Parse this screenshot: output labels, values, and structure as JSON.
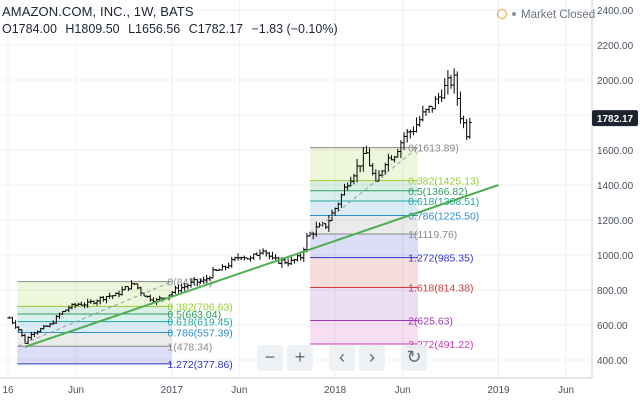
{
  "header": {
    "symbol": "AMAZON.COM, INC., 1W, BATS",
    "market_status": "Market Closed",
    "ohlc": {
      "open": "O1784.00",
      "high": "H1809.50",
      "low": "L1656.56",
      "close": "C1782.17",
      "change": "−1.83 (−0.10%)"
    }
  },
  "icons": {
    "clock": "clock-icon",
    "status_dot": "dot-icon"
  },
  "controls": {
    "zoom_out": "−",
    "zoom_in": "+",
    "scroll_left": "‹",
    "scroll_right": "›",
    "reset": "↻"
  },
  "colors": {
    "accent_line": "#4caf50",
    "price_label_bg": "#1c2430",
    "bars": "#000000"
  },
  "chart_data": {
    "type": "ohlc-bar",
    "interval": "1W",
    "price_label": "1782.17",
    "y_axis": {
      "min": 380,
      "max": 2420,
      "ticks": [
        "2400.00",
        "2200.00",
        "2000.00",
        "1800.00",
        "1600.00",
        "1400.00",
        "1200.00",
        "1000.00",
        "800.00",
        "600.00",
        "400.00"
      ]
    },
    "x_axis": {
      "ticks": [
        {
          "label": "16",
          "date": "2016-01"
        },
        {
          "label": "Jun",
          "date": "2016-06"
        },
        {
          "label": "2017",
          "date": "2017-01"
        },
        {
          "label": "Jun",
          "date": "2017-06"
        },
        {
          "label": "2018",
          "date": "2018-01"
        },
        {
          "label": "Jun",
          "date": "2018-06"
        },
        {
          "label": "2019",
          "date": "2019-01"
        },
        {
          "label": "Jun",
          "date": "2019-06"
        }
      ]
    },
    "price_series_close": [
      [
        "2016-01-04",
        640
      ],
      [
        "2016-01-25",
        575
      ],
      [
        "2016-02-08",
        500
      ],
      [
        "2016-02-22",
        555
      ],
      [
        "2016-03-14",
        575
      ],
      [
        "2016-04-04",
        600
      ],
      [
        "2016-04-25",
        660
      ],
      [
        "2016-05-16",
        700
      ],
      [
        "2016-06-06",
        720
      ],
      [
        "2016-06-27",
        720
      ],
      [
        "2016-07-18",
        745
      ],
      [
        "2016-08-08",
        765
      ],
      [
        "2016-08-29",
        770
      ],
      [
        "2016-09-19",
        810
      ],
      [
        "2016-10-10",
        835
      ],
      [
        "2016-10-24",
        790
      ],
      [
        "2016-11-07",
        760
      ],
      [
        "2016-11-28",
        740
      ],
      [
        "2016-12-19",
        765
      ],
      [
        "2017-01-09",
        800
      ],
      [
        "2017-01-30",
        820
      ],
      [
        "2017-02-20",
        845
      ],
      [
        "2017-03-13",
        850
      ],
      [
        "2017-04-03",
        900
      ],
      [
        "2017-04-24",
        920
      ],
      [
        "2017-05-15",
        960
      ],
      [
        "2017-06-05",
        1000
      ],
      [
        "2017-06-26",
        975
      ],
      [
        "2017-07-24",
        1040
      ],
      [
        "2017-08-14",
        970
      ],
      [
        "2017-09-04",
        965
      ],
      [
        "2017-09-25",
        960
      ],
      [
        "2017-10-16",
        990
      ],
      [
        "2017-10-30",
        1100
      ],
      [
        "2017-11-20",
        1150
      ],
      [
        "2017-12-11",
        1170
      ],
      [
        "2018-01-08",
        1300
      ],
      [
        "2018-01-29",
        1420
      ],
      [
        "2018-02-19",
        1500
      ],
      [
        "2018-03-12",
        1580
      ],
      [
        "2018-04-02",
        1400
      ],
      [
        "2018-04-23",
        1540
      ],
      [
        "2018-05-14",
        1580
      ],
      [
        "2018-06-04",
        1680
      ],
      [
        "2018-06-25",
        1720
      ],
      [
        "2018-07-16",
        1800
      ],
      [
        "2018-08-06",
        1850
      ],
      [
        "2018-08-27",
        1930
      ],
      [
        "2018-09-10",
        1980
      ],
      [
        "2018-09-24",
        2000
      ],
      [
        "2018-10-08",
        1800
      ],
      [
        "2018-10-22",
        1700
      ],
      [
        "2018-10-29",
        1782.17
      ]
    ],
    "trendline": {
      "from": [
        "2016-02-08",
        475
      ],
      "to": [
        "2019-01-01",
        1400
      ]
    },
    "fib_sets": [
      {
        "start_date": "2016-01-22",
        "end_date": "2017-01-01",
        "levels": [
          {
            "label": "0(847.74)",
            "value": 847.74,
            "color": "#888888"
          },
          {
            "label": "0.382(706.63)",
            "value": 706.63,
            "color": "#9acd32"
          },
          {
            "label": "0.5(663.04)",
            "value": 663.04,
            "color": "#2e9e5e"
          },
          {
            "label": "0.618(619.45)",
            "value": 619.45,
            "color": "#1fa7a2"
          },
          {
            "label": "0.786(557.39)",
            "value": 557.39,
            "color": "#2f8ecf"
          },
          {
            "label": "1(478.34)",
            "value": 478.34,
            "color": "#888888"
          },
          {
            "label": "1.272(377.86)",
            "value": 377.86,
            "color": "#2e36c8"
          }
        ]
      },
      {
        "start_date": "2017-11-06",
        "end_date": "2018-07-05",
        "levels": [
          {
            "label": "0(1613.89)",
            "value": 1613.89,
            "color": "#888888"
          },
          {
            "label": "0.382(1425.13)",
            "value": 1425.13,
            "color": "#9acd32"
          },
          {
            "label": "0.5(1366.82)",
            "value": 1366.82,
            "color": "#2e9e5e"
          },
          {
            "label": "0.618(1308.51)",
            "value": 1308.51,
            "color": "#1fa7a2"
          },
          {
            "label": "0.786(1225.50)",
            "value": 1225.5,
            "color": "#2f8ecf"
          },
          {
            "label": "1(1119.76)",
            "value": 1119.76,
            "color": "#888888"
          },
          {
            "label": "1.272(985.35)",
            "value": 985.35,
            "color": "#2e36c8"
          },
          {
            "label": "1.618(814.38)",
            "value": 814.38,
            "color": "#d23a3a"
          },
          {
            "label": "2(625.63)",
            "value": 625.63,
            "color": "#9c3ab6"
          },
          {
            "label": "2.272(491.22)",
            "value": 491.22,
            "color": "#d23ab0"
          }
        ]
      }
    ]
  }
}
